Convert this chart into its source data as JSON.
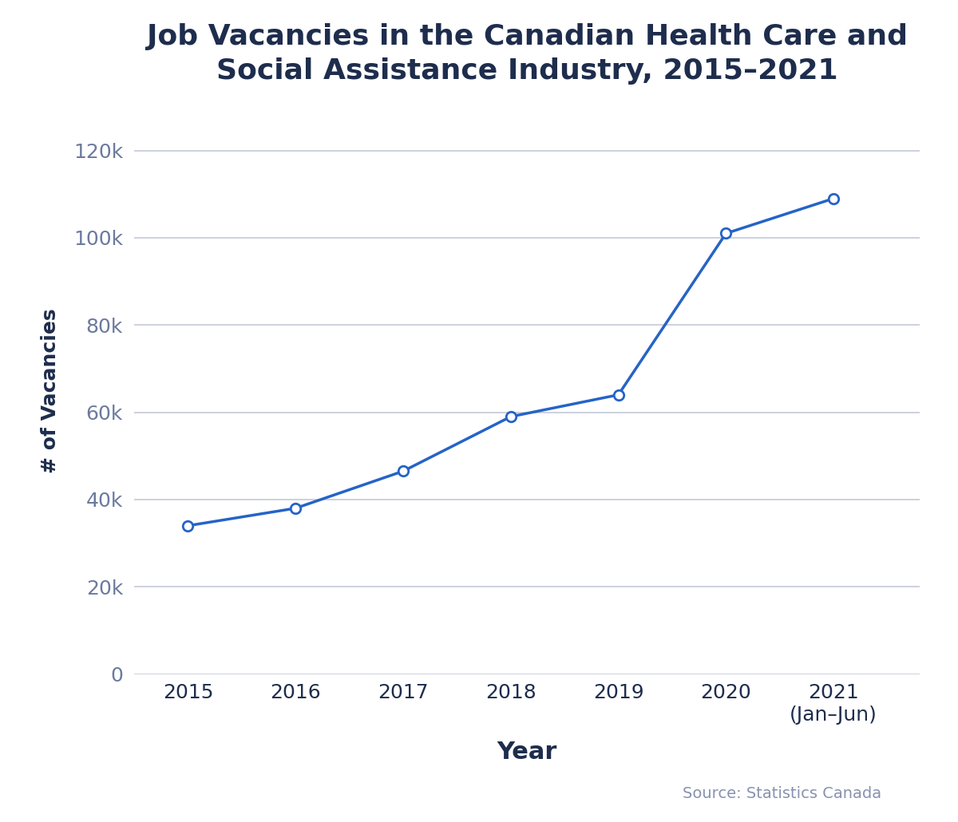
{
  "title": "Job Vacancies in the Canadian Health Care and\nSocial Assistance Industry, 2015–2021",
  "xlabel": "Year",
  "ylabel": "# of Vacancies",
  "years": [
    2015,
    2016,
    2017,
    2018,
    2019,
    2020,
    2021
  ],
  "values": [
    34000,
    38000,
    46500,
    59000,
    64000,
    101000,
    109000
  ],
  "x_tick_labels": [
    "2015",
    "2016",
    "2017",
    "2018",
    "2019",
    "2020",
    "2021\n(Jan–Jun)"
  ],
  "ylim": [
    0,
    130000
  ],
  "yticks": [
    0,
    20000,
    40000,
    60000,
    80000,
    100000,
    120000
  ],
  "line_color": "#2563C8",
  "marker_color": "#2563C8",
  "marker_face": "#ffffff",
  "grid_color": "#c5c9d8",
  "title_color": "#1e2d4d",
  "axis_label_color": "#1e2d4d",
  "ytick_color": "#6b7a9e",
  "xtick_color": "#1e2d4d",
  "source_text": "Source: Statistics Canada",
  "source_color": "#8892b0",
  "bg_color": "#ffffff",
  "title_fontsize": 26,
  "xlabel_fontsize": 22,
  "ylabel_fontsize": 18,
  "tick_fontsize": 18,
  "source_fontsize": 14,
  "line_width": 2.5,
  "marker_size": 9,
  "xlim": [
    2014.5,
    2021.8
  ]
}
